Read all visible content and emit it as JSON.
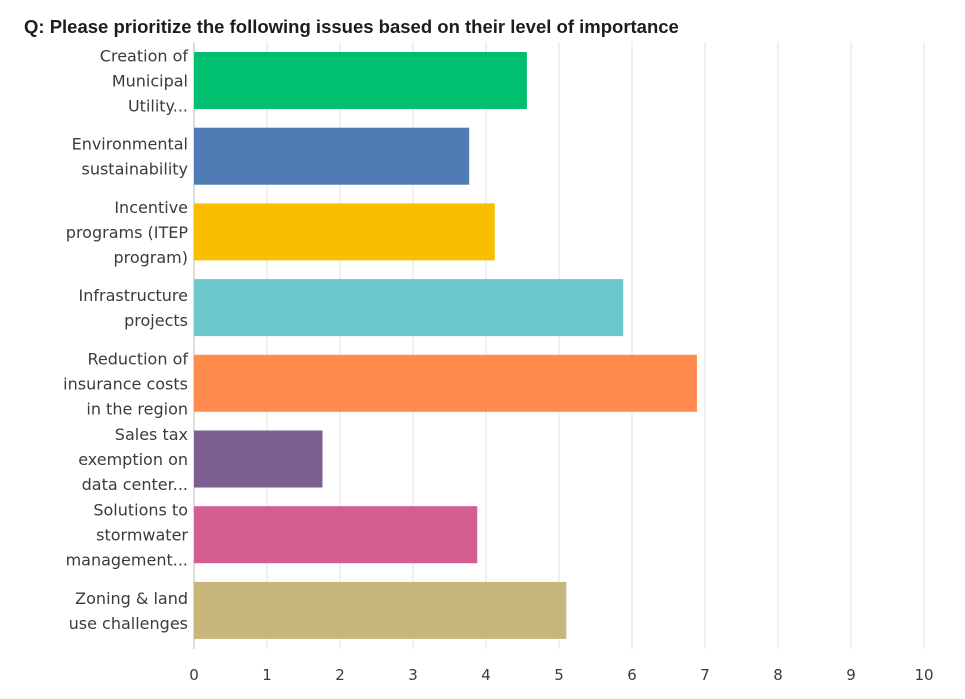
{
  "chart_data": {
    "type": "bar",
    "orientation": "horizontal",
    "title": "Q: Please prioritize the following issues based on their level of importance",
    "categories": [
      [
        "Creation of",
        "Municipal",
        "Utility..."
      ],
      [
        "Environmental",
        "sustainability"
      ],
      [
        "Incentive",
        "programs (ITEP",
        "program)"
      ],
      [
        "Infrastructure",
        "projects"
      ],
      [
        "Reduction of",
        "insurance costs",
        "in the region"
      ],
      [
        "Sales tax",
        "exemption on",
        "data center..."
      ],
      [
        "Solutions to",
        "stormwater",
        "management..."
      ],
      [
        "Zoning & land",
        "use challenges"
      ]
    ],
    "values": [
      4.56,
      3.77,
      4.12,
      5.88,
      6.89,
      1.76,
      3.88,
      5.1
    ],
    "colors": [
      "#00bf6f",
      "#507cb6",
      "#f9be00",
      "#6bc8cd",
      "#ff8b4f",
      "#7d5e90",
      "#d25f90",
      "#c8b77a"
    ],
    "xlim": [
      0,
      10
    ],
    "xticks": [
      "0",
      "1",
      "2",
      "3",
      "4",
      "5",
      "6",
      "7",
      "8",
      "9",
      "10"
    ],
    "grid": true,
    "xlabel": "",
    "ylabel": ""
  }
}
